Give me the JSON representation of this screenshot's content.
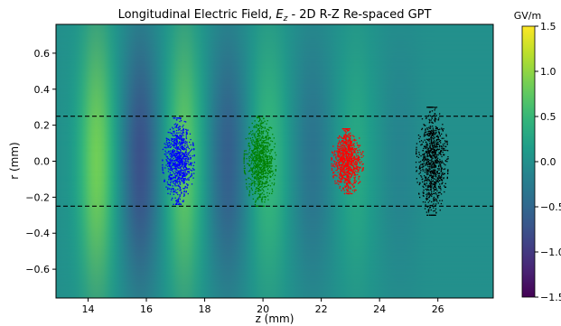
{
  "chart_data": {
    "type": "heatmap",
    "title": "Longitudinal Electric Field, E_z - 2D R-Z Re-spaced GPT",
    "title_parts": {
      "prefix": "Longitudinal Electric Field, ",
      "var_main": "E",
      "var_sub": "z",
      "suffix": " - 2D R-Z Re-spaced GPT"
    },
    "xlabel": "z (mm)",
    "ylabel": "r (mm)",
    "xlim": [
      12.9,
      27.9
    ],
    "ylim": [
      -0.76,
      0.76
    ],
    "xticks": [
      "14",
      "16",
      "18",
      "20",
      "22",
      "24",
      "26"
    ],
    "yticks": [
      "0.6",
      "0.4",
      "0.2",
      "0.0",
      "−0.2",
      "−0.4",
      "−0.6"
    ],
    "colorbar": {
      "label": "GV/m",
      "vmin": -1.5,
      "vmax": 1.5,
      "colormap": "viridis",
      "ticks": [
        "1.5",
        "1.0",
        "0.5",
        "0.0",
        "−0.5",
        "−1.0",
        "−1.5"
      ]
    },
    "field": {
      "background_value": 0.0,
      "bands": [
        {
          "z": 14.3,
          "peak": 0.85
        },
        {
          "z": 15.8,
          "peak": -0.75
        },
        {
          "z": 17.3,
          "peak": 0.75
        },
        {
          "z": 18.8,
          "peak": -0.6
        },
        {
          "z": 20.2,
          "peak": 0.5
        },
        {
          "z": 21.7,
          "peak": -0.35
        },
        {
          "z": 23.2,
          "peak": 0.3
        },
        {
          "z": 24.7,
          "peak": -0.15
        }
      ],
      "radial_falloff_mm": 0.5
    },
    "guide_lines_r": [
      0.25,
      -0.25
    ],
    "bunches": [
      {
        "z_center": 17.1,
        "color": "#0000ff",
        "z_halfwidth": 0.55,
        "r_halfheight": 0.24
      },
      {
        "z_center": 19.9,
        "color": "#008000",
        "z_halfwidth": 0.55,
        "r_halfheight": 0.25
      },
      {
        "z_center": 22.9,
        "color": "#ff0000",
        "z_halfwidth": 0.55,
        "r_halfheight": 0.18
      },
      {
        "z_center": 25.8,
        "color": "#000000",
        "z_halfwidth": 0.55,
        "r_halfheight": 0.3
      }
    ],
    "grid": false,
    "legend": "none"
  }
}
